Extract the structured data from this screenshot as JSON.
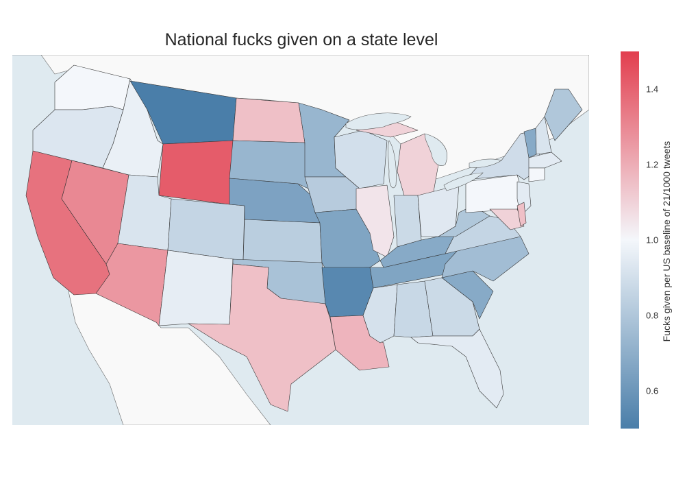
{
  "title": "National fucks given on a state level",
  "colorbar": {
    "title": "Fucks given per US baseline of 21/1000 tweets",
    "min": 0.5,
    "max": 1.5,
    "ticks": [
      "0.6",
      "0.8",
      "1.0",
      "1.2",
      "1.4"
    ],
    "low_color": "#4a7ea9",
    "mid_color": "#f4f7fb",
    "high_color": "#e23e4e"
  },
  "colors": {
    "ocean": "#dfeaf0",
    "land_outside": "#f9f9f9",
    "state_border": "#333333"
  },
  "states": [
    {
      "code": "WA",
      "value": 1.0
    },
    {
      "code": "OR",
      "value": 0.93
    },
    {
      "code": "CA",
      "value": 1.36
    },
    {
      "code": "NV",
      "value": 1.3
    },
    {
      "code": "ID",
      "value": 0.97
    },
    {
      "code": "MT",
      "value": 0.5
    },
    {
      "code": "WY",
      "value": 1.42
    },
    {
      "code": "UT",
      "value": 0.92
    },
    {
      "code": "AZ",
      "value": 1.26
    },
    {
      "code": "CO",
      "value": 0.86
    },
    {
      "code": "NM",
      "value": 0.96
    },
    {
      "code": "ND",
      "value": 1.15
    },
    {
      "code": "SD",
      "value": 0.73
    },
    {
      "code": "NE",
      "value": 0.65
    },
    {
      "code": "KS",
      "value": 0.83
    },
    {
      "code": "OK",
      "value": 0.78
    },
    {
      "code": "TX",
      "value": 1.15
    },
    {
      "code": "MN",
      "value": 0.73
    },
    {
      "code": "IA",
      "value": 0.82
    },
    {
      "code": "MO",
      "value": 0.66
    },
    {
      "code": "AR",
      "value": 0.54
    },
    {
      "code": "LA",
      "value": 1.18
    },
    {
      "code": "WI",
      "value": 0.9
    },
    {
      "code": "IL",
      "value": 1.05
    },
    {
      "code": "MI",
      "value": 1.1
    },
    {
      "code": "IN",
      "value": 0.88
    },
    {
      "code": "OH",
      "value": 0.94
    },
    {
      "code": "KY",
      "value": 0.68
    },
    {
      "code": "TN",
      "value": 0.66
    },
    {
      "code": "MS",
      "value": 0.91
    },
    {
      "code": "AL",
      "value": 0.87
    },
    {
      "code": "GA",
      "value": 0.88
    },
    {
      "code": "FL",
      "value": 0.95
    },
    {
      "code": "SC",
      "value": 0.68
    },
    {
      "code": "NC",
      "value": 0.76
    },
    {
      "code": "VA",
      "value": 0.86
    },
    {
      "code": "WV",
      "value": 0.8
    },
    {
      "code": "PA",
      "value": 1.0
    },
    {
      "code": "NY",
      "value": 0.89
    },
    {
      "code": "VT",
      "value": 0.68
    },
    {
      "code": "NH",
      "value": 0.92
    },
    {
      "code": "ME",
      "value": 0.8
    },
    {
      "code": "MA",
      "value": 0.95
    },
    {
      "code": "CT",
      "value": 1.0
    },
    {
      "code": "NJ",
      "value": 0.95
    },
    {
      "code": "MD",
      "value": 1.1
    },
    {
      "code": "DE",
      "value": 1.15
    }
  ]
}
